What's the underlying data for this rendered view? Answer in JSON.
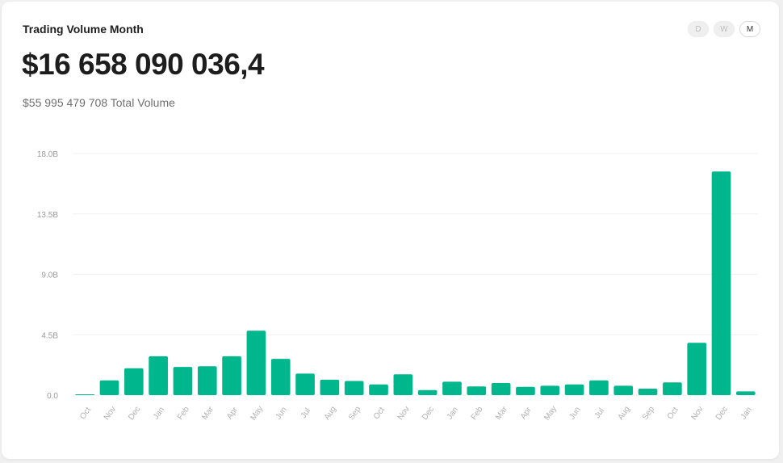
{
  "header": {
    "title": "Trading Volume Month",
    "value": "$16 658 090 036,4",
    "total": "$55 995 479 708 Total Volume"
  },
  "period_toggle": {
    "options": [
      "D",
      "W",
      "M"
    ],
    "selected": "M"
  },
  "colors": {
    "bar": "#00b68c",
    "grid": "#efefef",
    "text": "#1d1d1d"
  },
  "chart_data": {
    "type": "bar",
    "categories": [
      "Oct",
      "Nov",
      "Dec",
      "Jan",
      "Feb",
      "Mar",
      "Apr",
      "May",
      "Jun",
      "Jul",
      "Aug",
      "Sep",
      "Oct",
      "Nov",
      "Dec",
      "Jan",
      "Feb",
      "Mar",
      "Apr",
      "May",
      "Jun",
      "Jul",
      "Aug",
      "Sep",
      "Oct",
      "Nov",
      "Dec",
      "Jan"
    ],
    "values": [
      0.05,
      1.1,
      2.0,
      2.9,
      2.1,
      2.15,
      2.9,
      4.8,
      2.7,
      1.6,
      1.15,
      1.05,
      0.8,
      1.55,
      0.38,
      1.0,
      0.65,
      0.9,
      0.62,
      0.7,
      0.8,
      1.1,
      0.7,
      0.48,
      0.95,
      3.9,
      16.66,
      0.28
    ],
    "value_unit": "B",
    "y_ticks": [
      "0.0",
      "4.5B",
      "9.0B",
      "13.5B",
      "18.0B"
    ],
    "ylim": [
      0,
      18
    ],
    "grid": true,
    "title": "",
    "xlabel": "",
    "ylabel": ""
  }
}
